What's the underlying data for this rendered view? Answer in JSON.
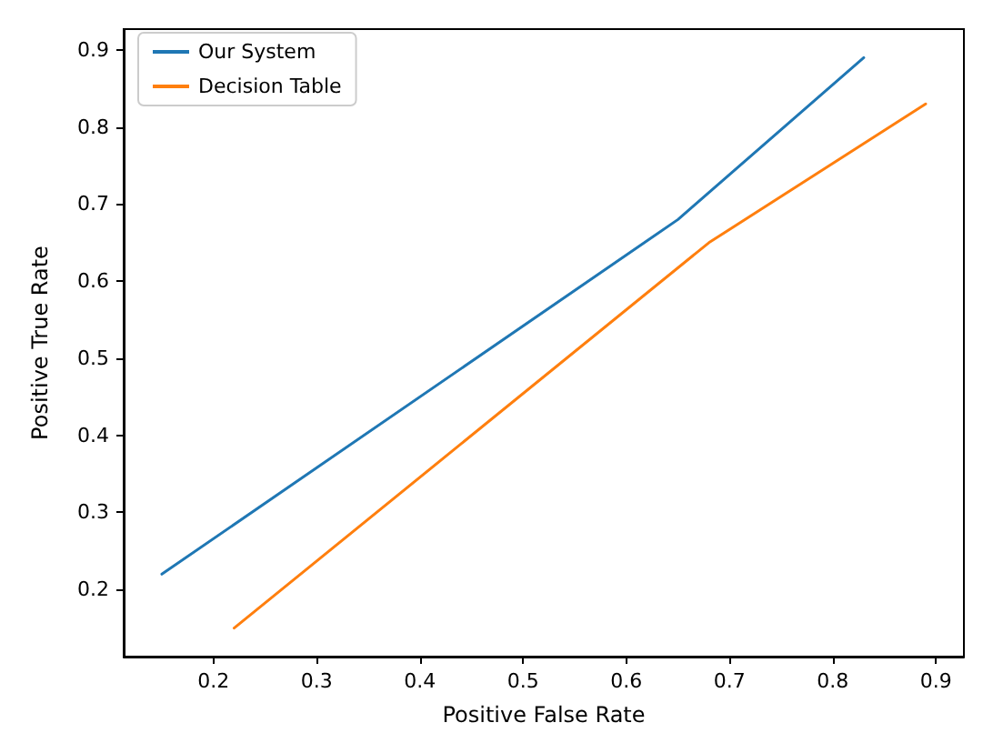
{
  "chart_data": {
    "type": "line",
    "xlabel": "Positive False Rate",
    "ylabel": "Positive True Rate",
    "xlim": [
      0.113,
      0.927
    ],
    "ylim": [
      0.113,
      0.927
    ],
    "xticks": [
      0.2,
      0.3,
      0.4,
      0.5,
      0.6,
      0.7,
      0.8,
      0.9
    ],
    "yticks": [
      0.2,
      0.3,
      0.4,
      0.5,
      0.6,
      0.7,
      0.8,
      0.9
    ],
    "legend": "top left",
    "grid": false,
    "marker": "none",
    "line_style": "solid",
    "series": [
      {
        "name": "Our System",
        "color": "#1f77b4",
        "x": [
          0.15,
          0.65,
          0.83
        ],
        "values": [
          0.22,
          0.68,
          0.89
        ]
      },
      {
        "name": "Decision Table",
        "color": "#ff7f0e",
        "x": [
          0.22,
          0.68,
          0.89
        ],
        "values": [
          0.15,
          0.65,
          0.83
        ]
      }
    ]
  }
}
